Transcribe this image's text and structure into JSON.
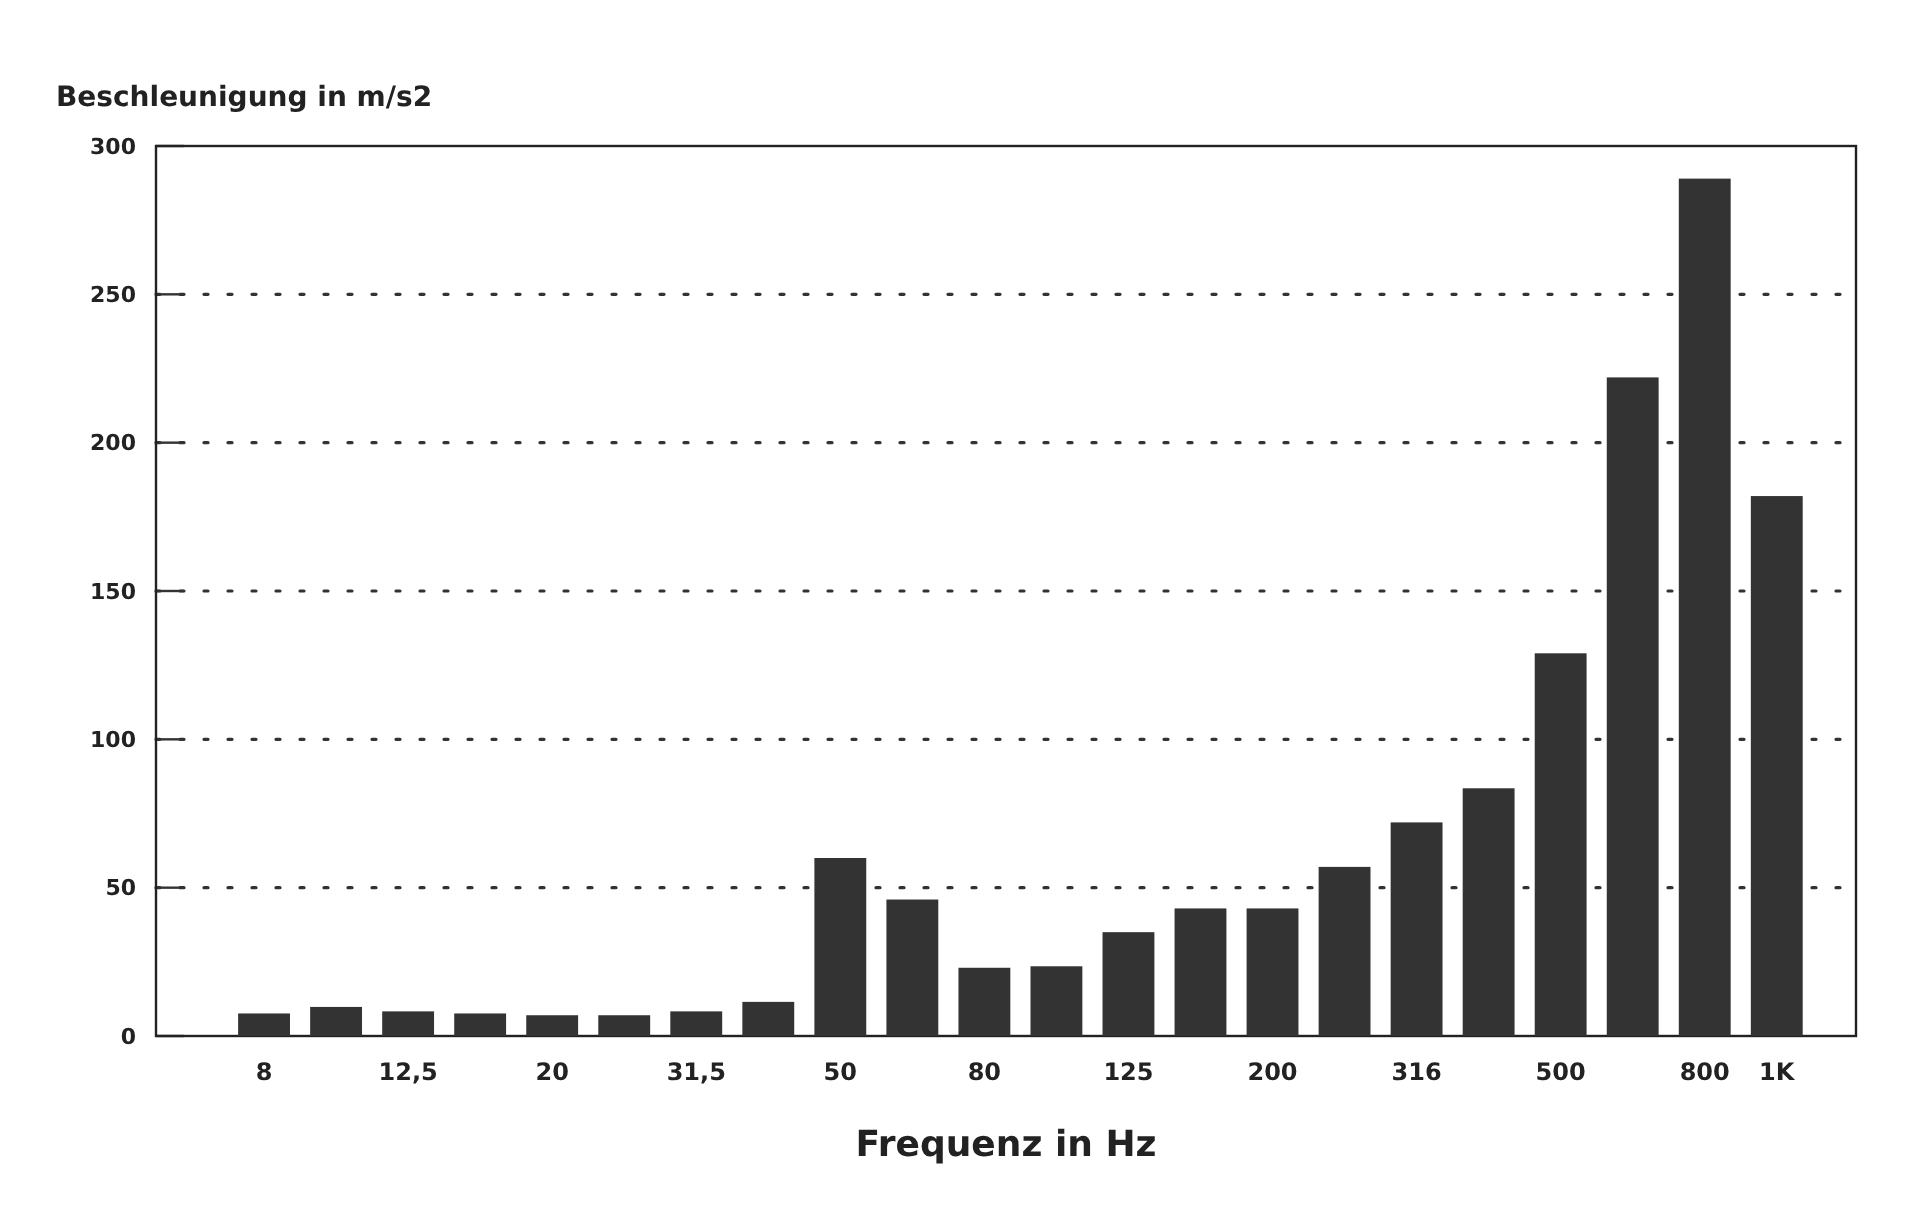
{
  "chart_data": {
    "type": "bar",
    "ylabel": "Beschleunigung in m/s2",
    "xlabel": "Frequenz in Hz",
    "categories": [
      "8",
      null,
      "12,5",
      null,
      "20",
      null,
      "31,5",
      null,
      "50",
      null,
      "80",
      null,
      "125",
      null,
      "200",
      null,
      "316",
      null,
      "500",
      null,
      "800",
      "1K"
    ],
    "values": [
      7.6,
      9.8,
      8.3,
      7.6,
      7,
      7,
      8.3,
      11.5,
      60,
      46,
      23,
      23.5,
      35,
      43,
      43,
      57,
      72,
      83.5,
      129,
      222,
      289,
      182
    ],
    "color": "#333333",
    "ylim": [
      0,
      300
    ],
    "yticks": [
      0,
      50,
      100,
      150,
      200,
      250,
      300
    ],
    "grid": "y",
    "line_style": "dotted"
  }
}
